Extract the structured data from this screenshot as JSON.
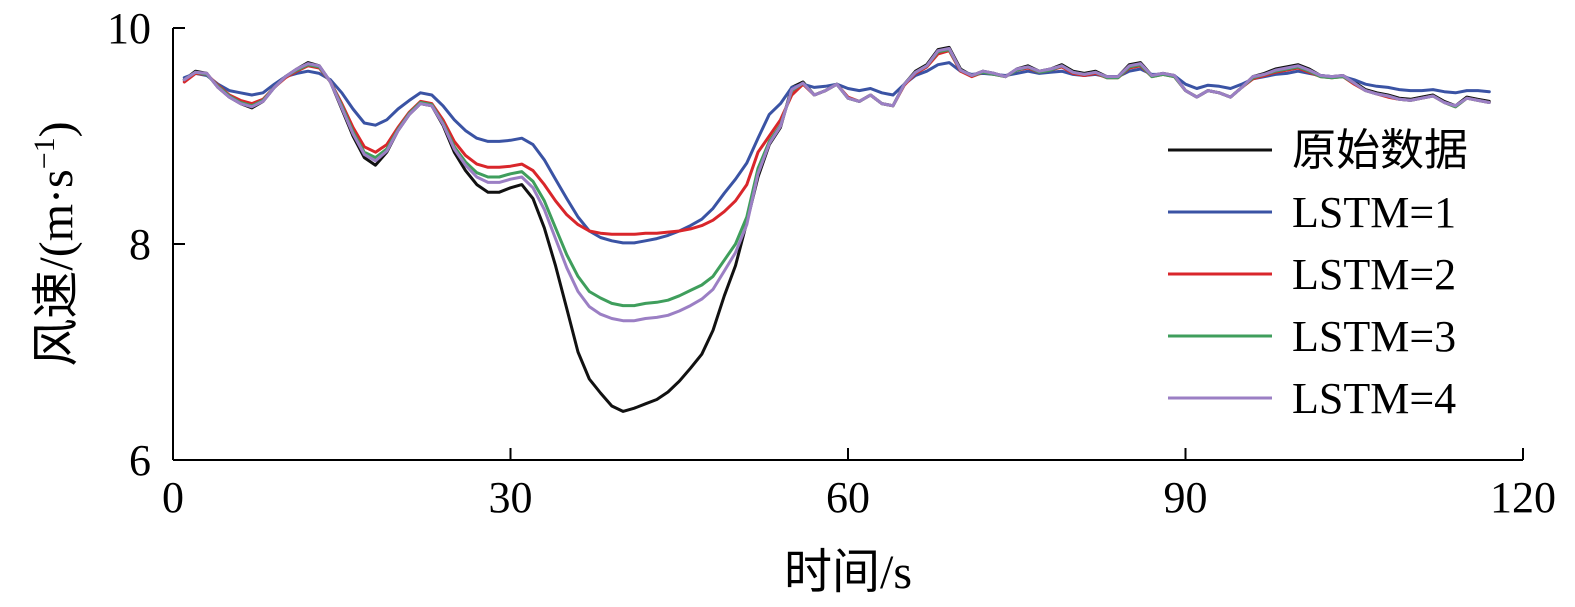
{
  "chart_data": {
    "type": "line",
    "xlabel": "时间/s",
    "ylabel_main": "风速/(m·s",
    "ylabel_sup": "−1",
    "ylabel_close": ")",
    "xlim": [
      0,
      120
    ],
    "ylim": [
      6,
      10
    ],
    "xticks": [
      0,
      30,
      60,
      90,
      120
    ],
    "yticks": [
      6,
      8,
      10
    ],
    "grid": false,
    "legend_position": "right",
    "x": [
      1,
      2,
      3,
      4,
      5,
      6,
      7,
      8,
      9,
      10,
      11,
      12,
      13,
      14,
      15,
      16,
      17,
      18,
      19,
      20,
      21,
      22,
      23,
      24,
      25,
      26,
      27,
      28,
      29,
      30,
      31,
      32,
      33,
      34,
      35,
      36,
      37,
      38,
      39,
      40,
      41,
      42,
      43,
      44,
      45,
      46,
      47,
      48,
      49,
      50,
      51,
      52,
      53,
      54,
      55,
      56,
      57,
      58,
      59,
      60,
      61,
      62,
      63,
      64,
      65,
      66,
      67,
      68,
      69,
      70,
      71,
      72,
      73,
      74,
      75,
      76,
      77,
      78,
      79,
      80,
      81,
      82,
      83,
      84,
      85,
      86,
      87,
      88,
      89,
      90,
      91,
      92,
      93,
      94,
      95,
      96,
      97,
      98,
      99,
      100,
      101,
      102,
      103,
      104,
      105,
      106,
      107,
      108,
      109,
      110,
      111,
      112,
      113,
      114,
      115,
      116,
      117
    ],
    "series": [
      {
        "name": "原始数据",
        "color": "#111111",
        "values": [
          9.52,
          9.6,
          9.58,
          9.45,
          9.36,
          9.3,
          9.26,
          9.32,
          9.45,
          9.55,
          9.62,
          9.68,
          9.65,
          9.5,
          9.25,
          9.0,
          8.8,
          8.73,
          8.85,
          9.05,
          9.2,
          9.3,
          9.28,
          9.1,
          8.85,
          8.68,
          8.55,
          8.48,
          8.48,
          8.52,
          8.55,
          8.42,
          8.15,
          7.8,
          7.4,
          7.0,
          6.75,
          6.62,
          6.5,
          6.45,
          6.48,
          6.52,
          6.56,
          6.63,
          6.73,
          6.85,
          6.98,
          7.2,
          7.52,
          7.8,
          8.2,
          8.62,
          8.92,
          9.08,
          9.45,
          9.5,
          9.38,
          9.42,
          9.48,
          9.35,
          9.32,
          9.38,
          9.3,
          9.28,
          9.48,
          9.6,
          9.66,
          9.8,
          9.82,
          9.62,
          9.56,
          9.6,
          9.58,
          9.55,
          9.62,
          9.65,
          9.6,
          9.62,
          9.66,
          9.6,
          9.58,
          9.6,
          9.55,
          9.55,
          9.66,
          9.68,
          9.56,
          9.58,
          9.56,
          9.42,
          9.36,
          9.42,
          9.4,
          9.36,
          9.45,
          9.55,
          9.58,
          9.62,
          9.64,
          9.66,
          9.62,
          9.56,
          9.55,
          9.56,
          9.5,
          9.43,
          9.4,
          9.38,
          9.35,
          9.34,
          9.36,
          9.38,
          9.32,
          9.28,
          9.36,
          9.34,
          9.32
        ]
      },
      {
        "name": "LSTM=1",
        "color": "#3a53a4",
        "values": [
          9.54,
          9.58,
          9.56,
          9.48,
          9.42,
          9.4,
          9.38,
          9.4,
          9.48,
          9.55,
          9.58,
          9.6,
          9.58,
          9.52,
          9.4,
          9.25,
          9.12,
          9.1,
          9.15,
          9.25,
          9.33,
          9.4,
          9.38,
          9.28,
          9.15,
          9.05,
          8.98,
          8.95,
          8.95,
          8.96,
          8.98,
          8.92,
          8.78,
          8.6,
          8.42,
          8.25,
          8.12,
          8.06,
          8.03,
          8.01,
          8.01,
          8.03,
          8.05,
          8.08,
          8.12,
          8.17,
          8.23,
          8.33,
          8.47,
          8.6,
          8.75,
          8.98,
          9.2,
          9.3,
          9.45,
          9.48,
          9.45,
          9.46,
          9.48,
          9.44,
          9.42,
          9.44,
          9.4,
          9.38,
          9.48,
          9.56,
          9.6,
          9.66,
          9.68,
          9.6,
          9.57,
          9.58,
          9.57,
          9.56,
          9.58,
          9.6,
          9.58,
          9.59,
          9.6,
          9.57,
          9.56,
          9.57,
          9.55,
          9.55,
          9.6,
          9.62,
          9.57,
          9.57,
          9.56,
          9.48,
          9.44,
          9.47,
          9.46,
          9.44,
          9.48,
          9.53,
          9.55,
          9.57,
          9.58,
          9.6,
          9.58,
          9.56,
          9.55,
          9.55,
          9.52,
          9.48,
          9.46,
          9.45,
          9.43,
          9.42,
          9.42,
          9.43,
          9.41,
          9.4,
          9.42,
          9.42,
          9.41
        ]
      },
      {
        "name": "LSTM=2",
        "color": "#d9262b",
        "values": [
          9.5,
          9.58,
          9.57,
          9.47,
          9.38,
          9.33,
          9.3,
          9.34,
          9.45,
          9.54,
          9.6,
          9.65,
          9.63,
          9.5,
          9.3,
          9.08,
          8.9,
          8.85,
          8.92,
          9.08,
          9.22,
          9.32,
          9.3,
          9.15,
          8.95,
          8.82,
          8.74,
          8.71,
          8.71,
          8.72,
          8.74,
          8.68,
          8.55,
          8.4,
          8.27,
          8.18,
          8.12,
          8.1,
          8.09,
          8.09,
          8.09,
          8.1,
          8.1,
          8.11,
          8.12,
          8.14,
          8.17,
          8.22,
          8.3,
          8.4,
          8.55,
          8.85,
          9.0,
          9.15,
          9.38,
          9.48,
          9.38,
          9.42,
          9.48,
          9.36,
          9.32,
          9.38,
          9.3,
          9.28,
          9.47,
          9.58,
          9.64,
          9.76,
          9.79,
          9.6,
          9.55,
          9.59,
          9.57,
          9.55,
          9.61,
          9.63,
          9.59,
          9.61,
          9.64,
          9.58,
          9.56,
          9.58,
          9.54,
          9.54,
          9.63,
          9.65,
          9.55,
          9.57,
          9.55,
          9.42,
          9.36,
          9.42,
          9.4,
          9.36,
          9.45,
          9.53,
          9.56,
          9.59,
          9.61,
          9.63,
          9.59,
          9.55,
          9.54,
          9.55,
          9.48,
          9.42,
          9.39,
          9.36,
          9.34,
          9.33,
          9.35,
          9.37,
          9.31,
          9.27,
          9.35,
          9.33,
          9.31
        ]
      },
      {
        "name": "LSTM=3",
        "color": "#3f9e5c",
        "values": [
          9.52,
          9.59,
          9.57,
          9.46,
          9.37,
          9.31,
          9.28,
          9.33,
          9.45,
          9.55,
          9.61,
          9.66,
          9.64,
          9.5,
          9.28,
          9.04,
          8.85,
          8.8,
          8.88,
          9.06,
          9.21,
          9.31,
          9.29,
          9.12,
          8.9,
          8.76,
          8.66,
          8.62,
          8.62,
          8.65,
          8.67,
          8.58,
          8.4,
          8.15,
          7.9,
          7.7,
          7.56,
          7.5,
          7.45,
          7.43,
          7.43,
          7.45,
          7.46,
          7.48,
          7.52,
          7.57,
          7.62,
          7.7,
          7.85,
          8.0,
          8.25,
          8.7,
          8.95,
          9.1,
          9.42,
          9.49,
          9.38,
          9.42,
          9.48,
          9.35,
          9.32,
          9.38,
          9.3,
          9.28,
          9.48,
          9.59,
          9.65,
          9.78,
          9.8,
          9.61,
          9.56,
          9.59,
          9.57,
          9.55,
          9.61,
          9.64,
          9.59,
          9.61,
          9.65,
          9.59,
          9.57,
          9.59,
          9.54,
          9.54,
          9.64,
          9.66,
          9.55,
          9.57,
          9.55,
          9.42,
          9.36,
          9.42,
          9.4,
          9.36,
          9.45,
          9.54,
          9.57,
          9.6,
          9.62,
          9.64,
          9.6,
          9.55,
          9.54,
          9.55,
          9.49,
          9.42,
          9.39,
          9.37,
          9.34,
          9.33,
          9.35,
          9.37,
          9.31,
          9.27,
          9.35,
          9.33,
          9.31
        ]
      },
      {
        "name": "LSTM=4",
        "color": "#9b7fc4",
        "values": [
          9.52,
          9.59,
          9.58,
          9.45,
          9.36,
          9.3,
          9.27,
          9.32,
          9.45,
          9.55,
          9.62,
          9.67,
          9.65,
          9.5,
          9.26,
          9.02,
          8.83,
          8.77,
          8.86,
          9.05,
          9.2,
          9.3,
          9.28,
          9.11,
          8.88,
          8.73,
          8.62,
          8.57,
          8.57,
          8.6,
          8.62,
          8.52,
          8.32,
          8.05,
          7.78,
          7.56,
          7.42,
          7.35,
          7.31,
          7.29,
          7.29,
          7.31,
          7.32,
          7.34,
          7.38,
          7.43,
          7.49,
          7.58,
          7.75,
          7.92,
          8.18,
          8.65,
          8.93,
          9.09,
          9.43,
          9.49,
          9.38,
          9.42,
          9.48,
          9.35,
          9.32,
          9.38,
          9.3,
          9.28,
          9.48,
          9.59,
          9.65,
          9.79,
          9.81,
          9.61,
          9.56,
          9.6,
          9.58,
          9.55,
          9.62,
          9.64,
          9.6,
          9.62,
          9.65,
          9.59,
          9.57,
          9.59,
          9.55,
          9.55,
          9.65,
          9.67,
          9.56,
          9.58,
          9.56,
          9.42,
          9.36,
          9.42,
          9.4,
          9.36,
          9.45,
          9.55,
          9.57,
          9.61,
          9.63,
          9.65,
          9.61,
          9.56,
          9.55,
          9.56,
          9.49,
          9.42,
          9.39,
          9.37,
          9.34,
          9.33,
          9.35,
          9.37,
          9.31,
          9.28,
          9.35,
          9.33,
          9.31
        ]
      }
    ]
  }
}
